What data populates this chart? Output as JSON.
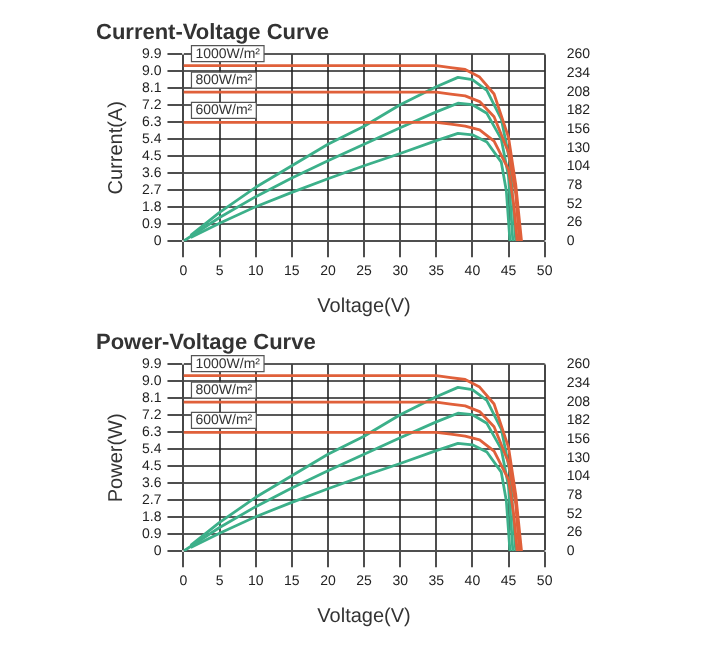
{
  "chart_data": [
    {
      "type": "line",
      "title": "Current-Voltage Curve",
      "xlabel": "Voltage(V)",
      "ylabel": "Current(A)",
      "xlim": [
        0,
        50
      ],
      "xticks": [
        0,
        5,
        10,
        15,
        20,
        25,
        30,
        35,
        40,
        45,
        50
      ],
      "ylim": [
        0,
        9.9
      ],
      "yticks": [
        0,
        0.9,
        1.8,
        2.7,
        3.6,
        4.5,
        5.4,
        6.3,
        7.2,
        8.1,
        {
          "value": 9,
          "label": "9.0"
        },
        9.9
      ],
      "y2lim": [
        0,
        260
      ],
      "y2ticks": [
        0,
        26,
        52,
        78,
        104,
        130,
        156,
        182,
        208,
        234,
        260
      ],
      "grid": true,
      "marker": "none",
      "line_style": "solid",
      "series": [
        {
          "name": "1000W/m²",
          "color": "#e0603a",
          "x": [
            0,
            5,
            10,
            15,
            20,
            25,
            30,
            35,
            37,
            39,
            41,
            43,
            45,
            46,
            46.8
          ],
          "values": [
            9.3,
            9.3,
            9.3,
            9.3,
            9.3,
            9.3,
            9.3,
            9.3,
            9.2,
            9.1,
            8.7,
            7.8,
            5.5,
            3,
            0
          ]
        },
        {
          "name": "800W/m²",
          "color": "#e0603a",
          "x": [
            0,
            5,
            10,
            15,
            20,
            25,
            30,
            35,
            37,
            39,
            41,
            43,
            45,
            46,
            46.5
          ],
          "values": [
            7.9,
            7.9,
            7.9,
            7.9,
            7.9,
            7.9,
            7.9,
            7.9,
            7.8,
            7.7,
            7.4,
            6.6,
            4.7,
            2.5,
            0
          ]
        },
        {
          "name": "600W/m²",
          "color": "#e0603a",
          "x": [
            0,
            5,
            10,
            15,
            20,
            25,
            30,
            35,
            37,
            39,
            41,
            43,
            45,
            45.7,
            46.2
          ],
          "values": [
            6.3,
            6.3,
            6.3,
            6.3,
            6.3,
            6.3,
            6.3,
            6.3,
            6.2,
            6.1,
            5.9,
            5.3,
            3.8,
            2,
            0
          ]
        },
        {
          "color": "#3cb08a",
          "axis": "y2",
          "x": [
            1,
            5,
            10,
            15,
            20,
            25,
            30,
            35,
            38,
            40,
            42,
            44,
            45.2,
            46
          ],
          "values": [
            8,
            40,
            75,
            105,
            135,
            160,
            190,
            215,
            228,
            225,
            210,
            170,
            110,
            0
          ]
        },
        {
          "color": "#3cb08a",
          "axis": "y2",
          "x": [
            0,
            5,
            10,
            15,
            20,
            25,
            30,
            35,
            38,
            40,
            42,
            44,
            45,
            45.6
          ],
          "values": [
            0,
            33,
            62,
            88,
            112,
            135,
            158,
            180,
            192,
            190,
            178,
            142,
            90,
            0
          ]
        },
        {
          "color": "#3cb08a",
          "axis": "y2",
          "x": [
            1,
            5,
            10,
            15,
            20,
            25,
            30,
            35,
            38,
            40,
            42,
            44,
            44.7,
            45.2
          ],
          "values": [
            5,
            25,
            48,
            68,
            87,
            105,
            122,
            140,
            150,
            148,
            138,
            110,
            70,
            0
          ]
        }
      ]
    },
    {
      "type": "line",
      "title": "Power-Voltage Curve",
      "xlabel": "Voltage(V)",
      "ylabel": "Power(W)",
      "xlim": [
        0,
        50
      ],
      "xticks": [
        0,
        5,
        10,
        15,
        20,
        25,
        30,
        35,
        40,
        45,
        50
      ],
      "ylim": [
        0,
        9.9
      ],
      "yticks": [
        0,
        0.9,
        1.8,
        2.7,
        3.6,
        4.5,
        5.4,
        6.3,
        7.2,
        8.1,
        {
          "value": 9,
          "label": "9.0"
        },
        9.9
      ],
      "y2lim": [
        0,
        260
      ],
      "y2ticks": [
        0,
        26,
        52,
        78,
        104,
        130,
        156,
        182,
        208,
        234,
        260
      ],
      "grid": true,
      "marker": "none",
      "line_style": "solid",
      "series": [
        {
          "name": "1000W/m²",
          "color": "#e0603a",
          "x": [
            0,
            5,
            10,
            15,
            20,
            25,
            30,
            35,
            37,
            39,
            41,
            43,
            45,
            46,
            46.8
          ],
          "values": [
            9.3,
            9.3,
            9.3,
            9.3,
            9.3,
            9.3,
            9.3,
            9.3,
            9.2,
            9.1,
            8.7,
            7.8,
            5.5,
            3,
            0
          ]
        },
        {
          "name": "800W/m²",
          "color": "#e0603a",
          "x": [
            0,
            5,
            10,
            15,
            20,
            25,
            30,
            35,
            37,
            39,
            41,
            43,
            45,
            46,
            46.5
          ],
          "values": [
            7.9,
            7.9,
            7.9,
            7.9,
            7.9,
            7.9,
            7.9,
            7.9,
            7.8,
            7.7,
            7.4,
            6.6,
            4.7,
            2.5,
            0
          ]
        },
        {
          "name": "600W/m²",
          "color": "#e0603a",
          "x": [
            0,
            5,
            10,
            15,
            20,
            25,
            30,
            35,
            37,
            39,
            41,
            43,
            45,
            45.7,
            46.2
          ],
          "values": [
            6.3,
            6.3,
            6.3,
            6.3,
            6.3,
            6.3,
            6.3,
            6.3,
            6.2,
            6.1,
            5.9,
            5.3,
            3.8,
            2,
            0
          ]
        },
        {
          "color": "#3cb08a",
          "axis": "y2",
          "x": [
            1,
            5,
            10,
            15,
            20,
            25,
            30,
            35,
            38,
            40,
            42,
            44,
            45.2,
            46
          ],
          "values": [
            8,
            40,
            75,
            105,
            135,
            160,
            190,
            215,
            228,
            225,
            210,
            170,
            110,
            0
          ]
        },
        {
          "color": "#3cb08a",
          "axis": "y2",
          "x": [
            0,
            5,
            10,
            15,
            20,
            25,
            30,
            35,
            38,
            40,
            42,
            44,
            45,
            45.6
          ],
          "values": [
            0,
            33,
            62,
            88,
            112,
            135,
            158,
            180,
            192,
            190,
            178,
            142,
            90,
            0
          ]
        },
        {
          "color": "#3cb08a",
          "axis": "y2",
          "x": [
            1,
            5,
            10,
            15,
            20,
            25,
            30,
            35,
            38,
            40,
            42,
            44,
            44.7,
            45.2
          ],
          "values": [
            5,
            25,
            48,
            68,
            87,
            105,
            122,
            140,
            150,
            148,
            138,
            110,
            70,
            0
          ]
        }
      ]
    }
  ]
}
